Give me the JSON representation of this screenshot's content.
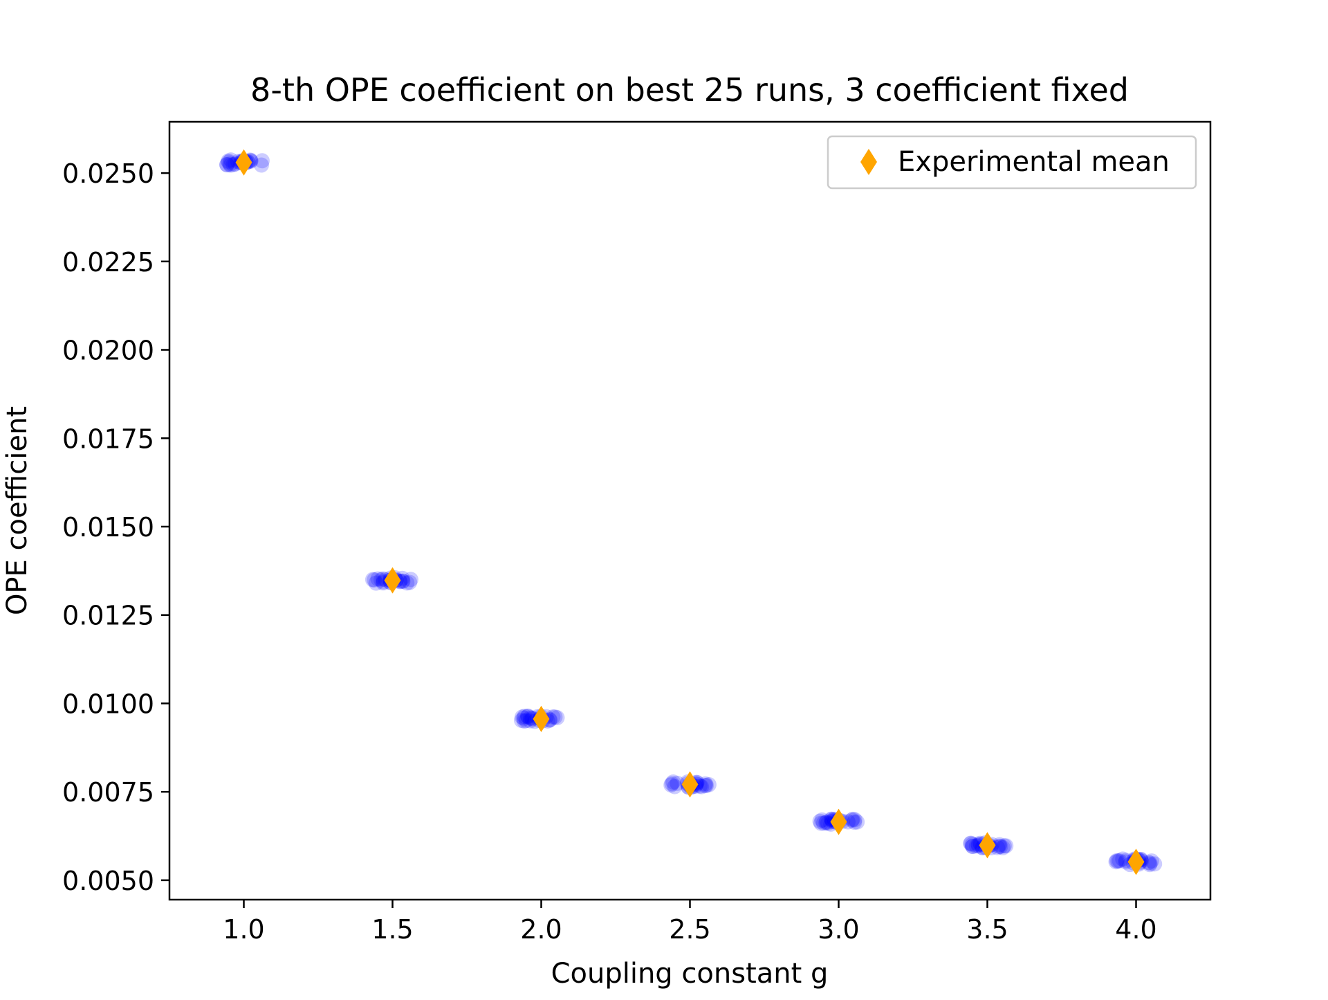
{
  "chart_data": {
    "type": "scatter",
    "title": "8-th OPE coefficient on best 25 runs, 3 coefficient fixed",
    "xlabel": "Coupling constant g",
    "ylabel": "OPE coefficient",
    "xlim": [
      0.75,
      4.25
    ],
    "ylim": [
      0.00445,
      0.02645
    ],
    "xticks": [
      1.0,
      1.5,
      2.0,
      2.5,
      3.0,
      3.5,
      4.0
    ],
    "xtick_labels": [
      "1.0",
      "1.5",
      "2.0",
      "2.5",
      "3.0",
      "3.5",
      "4.0"
    ],
    "yticks": [
      0.005,
      0.0075,
      0.01,
      0.0125,
      0.015,
      0.0175,
      0.02,
      0.0225,
      0.025
    ],
    "ytick_labels": [
      "0.0050",
      "0.0075",
      "0.0100",
      "0.0125",
      "0.0150",
      "0.0175",
      "0.0200",
      "0.0225",
      "0.0250"
    ],
    "grid": false,
    "legend_position": "top-right",
    "series": [
      {
        "name": "",
        "marker": "circle",
        "color": "#0000ff",
        "alpha": 0.2,
        "points_per_x": 25,
        "x": [
          1.0,
          1.5,
          2.0,
          2.5,
          3.0,
          3.5,
          4.0
        ],
        "y": [
          0.0253,
          0.01348,
          0.00956,
          0.00771,
          0.00665,
          0.00599,
          0.00552
        ]
      },
      {
        "name": "Experimental mean",
        "marker": "diamond",
        "color": "#ffa500",
        "x": [
          1.0,
          1.5,
          2.0,
          2.5,
          3.0,
          3.5,
          4.0
        ],
        "y": [
          0.0253,
          0.01348,
          0.00956,
          0.00771,
          0.00665,
          0.00599,
          0.00552
        ]
      }
    ]
  }
}
